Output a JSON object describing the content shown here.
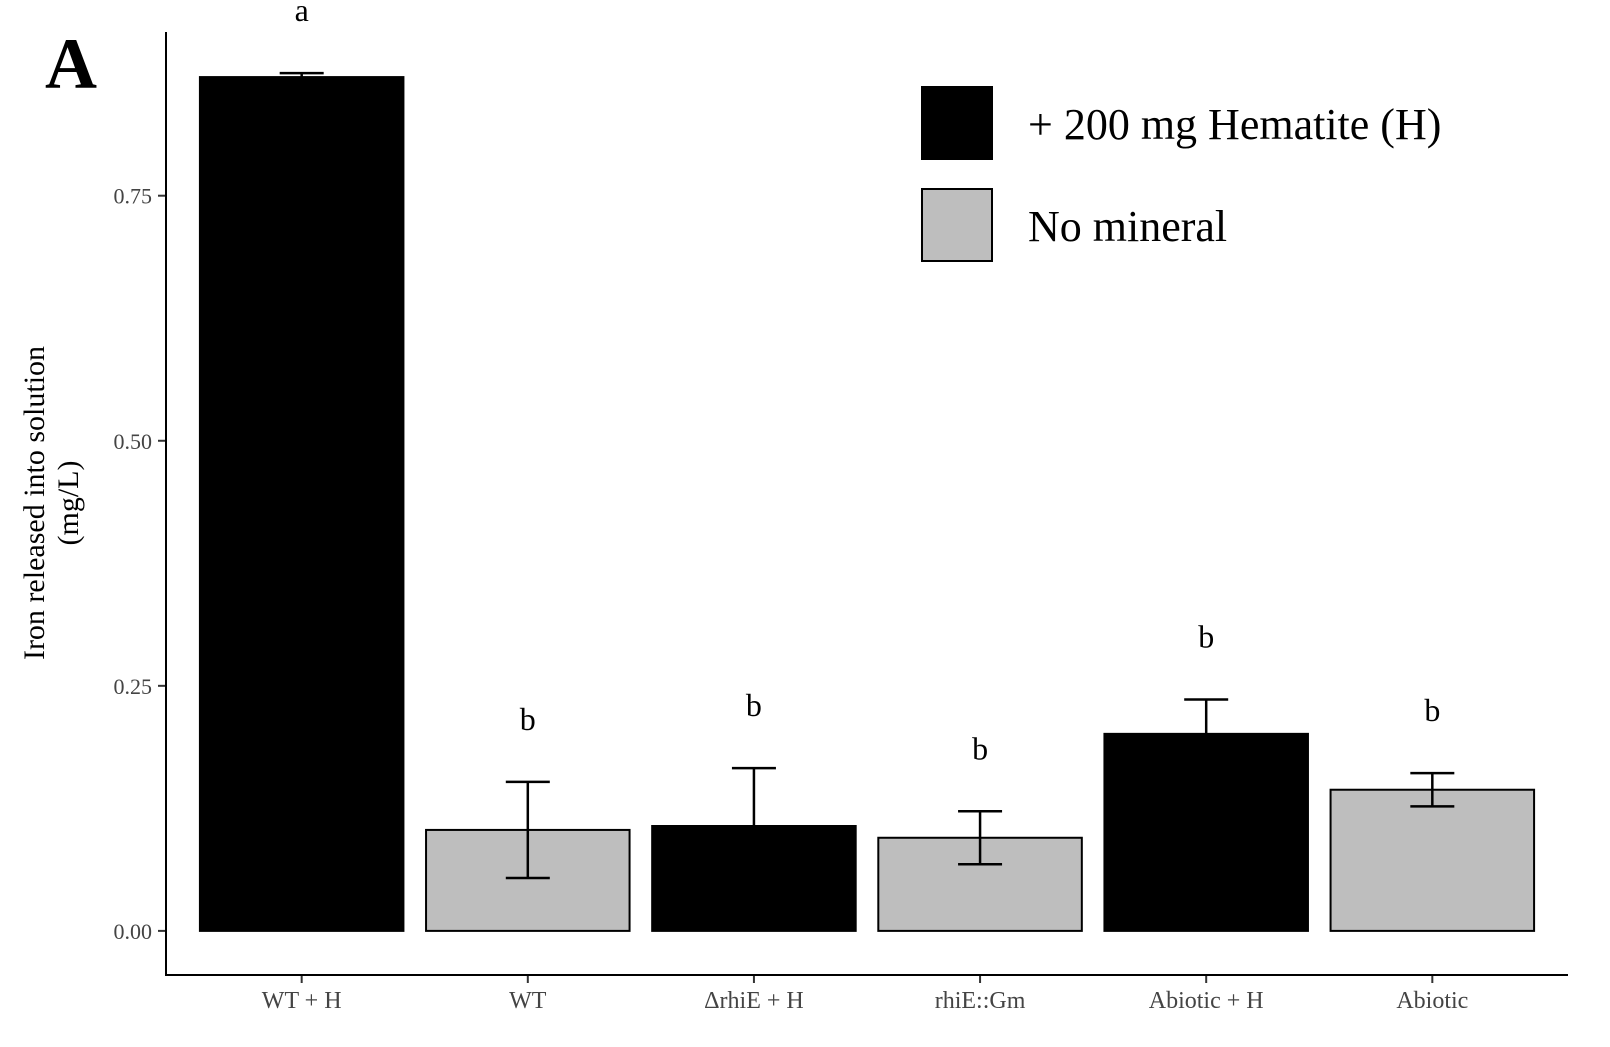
{
  "chart_data": {
    "type": "bar",
    "panel_label": "A",
    "ylabel": [
      "Iron released into solution",
      "(mg/L)"
    ],
    "categories": [
      "WT + H",
      "WT",
      "ΔrhiE + H",
      "rhiE::Gm",
      "Abiotic + H",
      "Abiotic"
    ],
    "series": [
      {
        "name": "+ 200 mg Hematite (H)",
        "color": "#000000",
        "values": [
          0.871,
          null,
          0.107,
          null,
          0.201,
          null
        ],
        "errors": [
          0.004,
          null,
          0.059,
          null,
          0.035,
          null
        ]
      },
      {
        "name": "No mineral",
        "color": "#bebebe",
        "values": [
          null,
          0.103,
          null,
          0.095,
          null,
          0.144
        ],
        "errors": [
          null,
          0.049,
          null,
          0.027,
          null,
          0.017
        ]
      }
    ],
    "annotations": [
      "a",
      "b",
      "b",
      "b",
      "b",
      "b"
    ],
    "ylim": [
      -0.045,
      0.917
    ],
    "yticks": [
      {
        "value": 0,
        "label": "0.00"
      },
      {
        "value": 0.25,
        "label": "0.25"
      },
      {
        "value": 0.5,
        "label": "0.50"
      },
      {
        "value": 0.75,
        "label": "0.75"
      }
    ],
    "legend": "top-right"
  }
}
